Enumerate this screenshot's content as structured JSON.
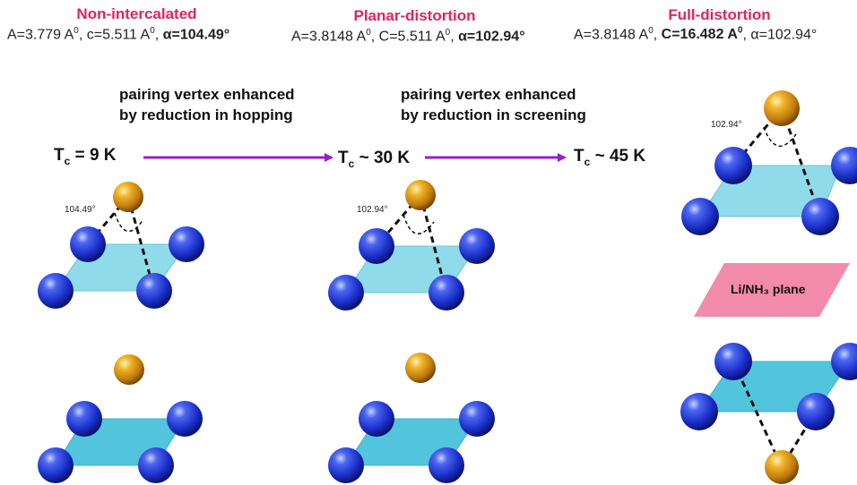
{
  "columns": [
    {
      "title": "Non-intercalated",
      "params_plain": "A=3.779 A",
      "params_sup1": "0",
      "params_mid": ", c=5.511 A",
      "params_sup2": "0",
      "params_sep": ", ",
      "params_bold": "α=104.49°",
      "angle": "104.49°"
    },
    {
      "title": "Planar-distortion",
      "params_plain": "A=3.8148 A",
      "params_sup1": "0",
      "params_mid": ", C=5.511 A",
      "params_sup2": "0",
      "params_sep": ", ",
      "params_bold": "α=102.94°",
      "angle": "102.94°"
    },
    {
      "title": "Full-distortion",
      "params_plain": "A=3.8148 A",
      "params_sup1": "0",
      "params_bold_mid": "C=16.482 A",
      "params_sup2": "0",
      "params_tail": "α=102.94°",
      "angle": "102.94°"
    }
  ],
  "notes": {
    "hopping": "pairing vertex enhanced\nby reduction in hopping",
    "screening": "pairing vertex enhanced\nby reduction in screening"
  },
  "tc": [
    {
      "prefix": "T",
      "sub": "c",
      "value": " = 9 K"
    },
    {
      "prefix": "T",
      "sub": "c",
      "value": " ~ 30 K"
    },
    {
      "prefix": "T",
      "sub": "c",
      "value": " ~ 45 K"
    }
  ],
  "plane_label": "Li/NH₃ plane",
  "colors": {
    "title": "#e0245e",
    "arrow": "#9b1fc4",
    "plane": "#5fd0e6",
    "li_plane": "#f07fa3",
    "fe_atom": "#1e3ad8",
    "se_atom": "#e3a21a"
  }
}
